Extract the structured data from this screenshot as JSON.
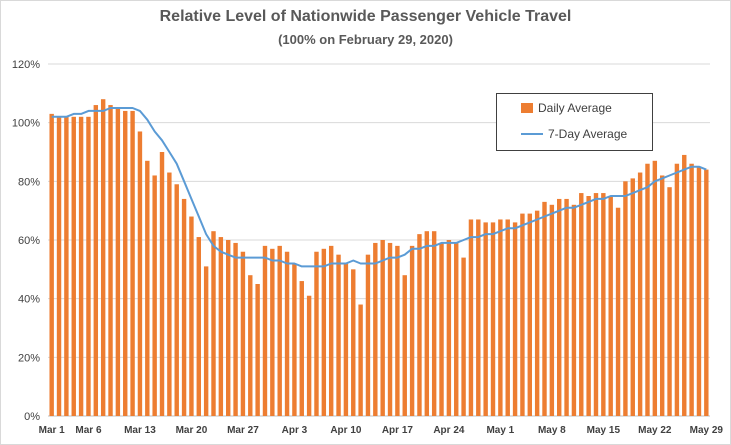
{
  "colors": {
    "bar": "#ed7d31",
    "line": "#5b9bd5",
    "grid": "#d9d9d9",
    "text": "#404040"
  },
  "chart_data": {
    "type": "bar",
    "title": "Relative Level of Nationwide Passenger Vehicle Travel",
    "subtitle": "(100% on February 29, 2020)",
    "xlabel": "",
    "ylabel": "",
    "ylim": [
      0,
      120
    ],
    "yticks": [
      "0%",
      "20%",
      "40%",
      "60%",
      "80%",
      "100%",
      "120%"
    ],
    "grid": true,
    "legend_position": "top-right",
    "xticks": [
      "Mar 1",
      "Mar 6",
      "Mar 13",
      "Mar 20",
      "Mar 27",
      "Apr 3",
      "Apr 10",
      "Apr 17",
      "Apr 24",
      "May 1",
      "May 8",
      "May 15",
      "May 22",
      "May 29"
    ],
    "xtick_day_index": [
      0,
      5,
      12,
      19,
      26,
      33,
      40,
      47,
      54,
      61,
      68,
      75,
      82,
      89
    ],
    "categories": [
      "Mar 1",
      "Mar 2",
      "Mar 3",
      "Mar 4",
      "Mar 5",
      "Mar 6",
      "Mar 7",
      "Mar 8",
      "Mar 9",
      "Mar 10",
      "Mar 11",
      "Mar 12",
      "Mar 13",
      "Mar 14",
      "Mar 15",
      "Mar 16",
      "Mar 17",
      "Mar 18",
      "Mar 19",
      "Mar 20",
      "Mar 21",
      "Mar 22",
      "Mar 23",
      "Mar 24",
      "Mar 25",
      "Mar 26",
      "Mar 27",
      "Mar 28",
      "Mar 29",
      "Mar 30",
      "Mar 31",
      "Apr 1",
      "Apr 2",
      "Apr 3",
      "Apr 4",
      "Apr 5",
      "Apr 6",
      "Apr 7",
      "Apr 8",
      "Apr 9",
      "Apr 10",
      "Apr 11",
      "Apr 12",
      "Apr 13",
      "Apr 14",
      "Apr 15",
      "Apr 16",
      "Apr 17",
      "Apr 18",
      "Apr 19",
      "Apr 20",
      "Apr 21",
      "Apr 22",
      "Apr 23",
      "Apr 24",
      "Apr 25",
      "Apr 26",
      "Apr 27",
      "Apr 28",
      "Apr 29",
      "Apr 30",
      "May 1",
      "May 2",
      "May 3",
      "May 4",
      "May 5",
      "May 6",
      "May 7",
      "May 8",
      "May 9",
      "May 10",
      "May 11",
      "May 12",
      "May 13",
      "May 14",
      "May 15",
      "May 16",
      "May 17",
      "May 18",
      "May 19",
      "May 20",
      "May 21",
      "May 22",
      "May 23",
      "May 24",
      "May 25",
      "May 26",
      "May 27",
      "May 28",
      "May 29"
    ],
    "series": [
      {
        "name": "Daily Average",
        "kind": "bar",
        "values": [
          103,
          102,
          102,
          102,
          102,
          102,
          106,
          108,
          106,
          105,
          104,
          104,
          97,
          87,
          82,
          90,
          83,
          79,
          74,
          68,
          61,
          51,
          63,
          61,
          60,
          59,
          56,
          48,
          45,
          58,
          57,
          58,
          56,
          52,
          46,
          41,
          56,
          57,
          58,
          55,
          52,
          50,
          38,
          55,
          59,
          60,
          59,
          58,
          48,
          58,
          62,
          63,
          63,
          59,
          60,
          59,
          54,
          67,
          67,
          66,
          66,
          67,
          67,
          66,
          69,
          69,
          70,
          73,
          72,
          74,
          74,
          72,
          76,
          75,
          76,
          76,
          75,
          71,
          80,
          81,
          83,
          86,
          87,
          82,
          78,
          86,
          89,
          86,
          85,
          84
        ]
      },
      {
        "name": "7-Day Average",
        "kind": "line",
        "values": [
          102,
          102,
          102,
          103,
          103,
          104,
          104,
          104,
          105,
          105,
          105,
          105,
          104,
          101,
          97,
          94,
          90,
          86,
          80,
          74,
          68,
          62,
          58,
          56,
          55,
          54,
          54,
          54,
          54,
          54,
          53,
          53,
          52,
          52,
          51,
          51,
          51,
          51,
          52,
          52,
          52,
          53,
          52,
          52,
          52,
          53,
          54,
          54,
          55,
          57,
          57,
          58,
          58,
          59,
          59,
          59,
          60,
          61,
          61,
          62,
          62,
          63,
          64,
          64,
          65,
          66,
          67,
          68,
          69,
          70,
          71,
          71,
          72,
          73,
          74,
          74,
          75,
          75,
          75,
          76,
          77,
          78,
          80,
          81,
          82,
          83,
          84,
          85,
          85,
          84
        ]
      }
    ]
  }
}
